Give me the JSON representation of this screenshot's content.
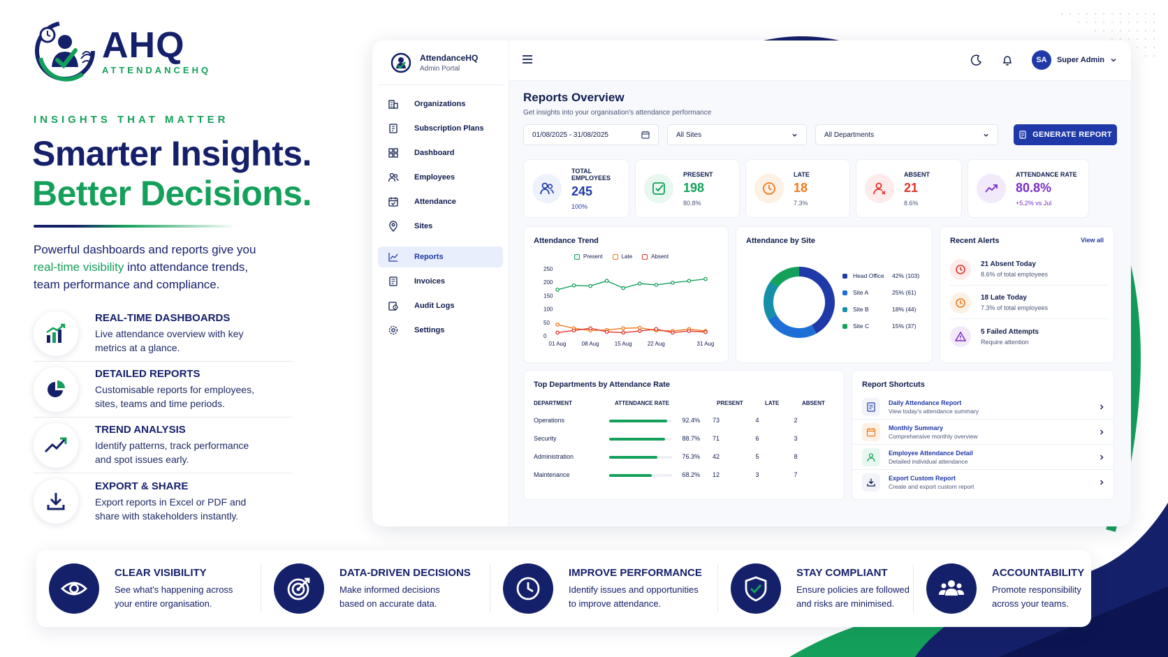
{
  "brand": {
    "name": "AHQ",
    "subtitle": "ATTENDANCEHQ"
  },
  "hero": {
    "eyebrow": "INSIGHTS THAT MATTER",
    "headline_1": "Smarter Insights.",
    "headline_2": "Better Decisions.",
    "intro_1": "Powerful dashboards and reports give you",
    "intro_hl": "real-time visibility",
    "intro_2": " into attendance trends,",
    "intro_3": "team performance and compliance."
  },
  "features": [
    {
      "title": "REAL-TIME DASHBOARDS",
      "desc_1": "Live attendance overview with key",
      "desc_2": "metrics at a glance.",
      "icon": "bar-chart-icon"
    },
    {
      "title": "DETAILED REPORTS",
      "desc_1": "Customisable reports for employees,",
      "desc_2": "sites, teams and time periods.",
      "icon": "pie-chart-icon"
    },
    {
      "title": "TREND ANALYSIS",
      "desc_1": "Identify patterns, track performance",
      "desc_2": "and spot issues early.",
      "icon": "trend-up-icon"
    },
    {
      "title": "EXPORT & SHARE",
      "desc_1": "Export reports in Excel or PDF and",
      "desc_2": "share with stakeholders instantly.",
      "icon": "download-icon"
    }
  ],
  "app": {
    "sidebar": {
      "title": "AttendanceHQ",
      "subtitle": "Admin Portal",
      "items": [
        {
          "label": "Organizations",
          "icon": "building-icon"
        },
        {
          "label": "Subscription Plans",
          "icon": "plans-icon"
        },
        {
          "label": "Dashboard",
          "icon": "grid-icon"
        },
        {
          "label": "Employees",
          "icon": "users-icon"
        },
        {
          "label": "Attendance",
          "icon": "calendar-icon"
        },
        {
          "label": "Sites",
          "icon": "pin-icon"
        },
        {
          "label": "Reports",
          "icon": "chart-icon"
        },
        {
          "label": "Invoices",
          "icon": "invoice-icon"
        },
        {
          "label": "Audit Logs",
          "icon": "audit-icon"
        },
        {
          "label": "Settings",
          "icon": "gear-icon"
        }
      ]
    },
    "topbar": {
      "avatar": "SA",
      "user": "Super Admin"
    },
    "page": {
      "title": "Reports Overview",
      "subtitle": "Get insights into your organisation's attendance performance"
    },
    "filters": {
      "date_range": "01/08/2025 - 31/08/2025",
      "sites": "All Sites",
      "departments": "All Departments",
      "generate": "GENERATE REPORT"
    },
    "stats": [
      {
        "label": "TOTAL EMPLOYEES",
        "value": "245",
        "note": "100%",
        "color": "#1f3aa8"
      },
      {
        "label": "PRESENT",
        "value": "198",
        "note": "80.8%",
        "color": "#14a05a"
      },
      {
        "label": "LATE",
        "value": "18",
        "note": "7.3%",
        "color": "#f07a1a"
      },
      {
        "label": "ABSENT",
        "value": "21",
        "note": "8.6%",
        "color": "#e0342a"
      },
      {
        "label": "ATTENDANCE RATE",
        "value": "80.8%",
        "note": "+5.2% vs Jul",
        "color": "#7a2ec7"
      }
    ],
    "trend": {
      "title": "Attendance Trend",
      "legend_present": "Present",
      "legend_late": "Late",
      "legend_absent": "Absent",
      "y_ticks": [
        "250",
        "200",
        "150",
        "100",
        "50",
        "0"
      ],
      "x_ticks": [
        "01 Aug",
        "08 Aug",
        "15 Aug",
        "22 Aug",
        "31 Aug"
      ]
    },
    "by_site": {
      "title": "Attendance by Site",
      "rows": [
        {
          "name": "Head Office",
          "value": "42% (103)",
          "color": "#1f3aa8"
        },
        {
          "name": "Site A",
          "value": "25% (61)",
          "color": "#1d6fd6"
        },
        {
          "name": "Site B",
          "value": "18% (44)",
          "color": "#1590a8"
        },
        {
          "name": "Site C",
          "value": "15% (37)",
          "color": "#14a05a"
        }
      ]
    },
    "alerts": {
      "title": "Recent Alerts",
      "view_all": "View all",
      "items": [
        {
          "title": "21 Absent Today",
          "sub": "8.6% of total employees"
        },
        {
          "title": "18 Late Today",
          "sub": "7.3% of total employees"
        },
        {
          "title": "5 Failed Attempts",
          "sub": "Require attention"
        }
      ]
    },
    "departments": {
      "title": "Top Departments by Attendance Rate",
      "headers": [
        "DEPARTMENT",
        "ATTENDANCE RATE",
        "PRESENT",
        "LATE",
        "ABSENT"
      ],
      "rows": [
        {
          "name": "Operations",
          "rate": "92.4%",
          "rate_value": 0.924,
          "present": "73",
          "late": "4",
          "absent": "2"
        },
        {
          "name": "Security",
          "rate": "88.7%",
          "rate_value": 0.887,
          "present": "71",
          "late": "6",
          "absent": "3"
        },
        {
          "name": "Administration",
          "rate": "76.3%",
          "rate_value": 0.763,
          "present": "42",
          "late": "5",
          "absent": "8"
        },
        {
          "name": "Maintenance",
          "rate": "68.2%",
          "rate_value": 0.682,
          "present": "12",
          "late": "3",
          "absent": "7"
        }
      ]
    },
    "shortcuts": {
      "title": "Report Shortcuts",
      "items": [
        {
          "title": "Daily Attendance Report",
          "sub": "View today's attendance summary"
        },
        {
          "title": "Monthly Summary",
          "sub": "Comprehensive monthly overview"
        },
        {
          "title": "Employee Attendance Detail",
          "sub": "Detailed individual attendance"
        },
        {
          "title": "Export Custom Report",
          "sub": "Create and export custom report"
        }
      ]
    }
  },
  "chart_data": [
    {
      "type": "line",
      "title": "Attendance Trend",
      "x": [
        "01 Aug",
        "04 Aug",
        "08 Aug",
        "11 Aug",
        "15 Aug",
        "18 Aug",
        "22 Aug",
        "25 Aug",
        "28 Aug",
        "31 Aug"
      ],
      "x_ticks": [
        "01 Aug",
        "08 Aug",
        "15 Aug",
        "22 Aug",
        "31 Aug"
      ],
      "ylim": [
        0,
        250
      ],
      "series": [
        {
          "name": "Present",
          "color": "#14a05a",
          "values": [
            172,
            188,
            186,
            205,
            178,
            195,
            190,
            198,
            205,
            212
          ]
        },
        {
          "name": "Late",
          "color": "#f07a1a",
          "values": [
            42,
            28,
            20,
            22,
            28,
            30,
            20,
            18,
            25,
            18
          ]
        },
        {
          "name": "Absent",
          "color": "#e0342a",
          "values": [
            12,
            20,
            28,
            15,
            12,
            18,
            25,
            12,
            18,
            14
          ]
        }
      ]
    },
    {
      "type": "pie",
      "title": "Attendance by Site",
      "categories": [
        "Head Office",
        "Site A",
        "Site B",
        "Site C"
      ],
      "values": [
        42,
        25,
        18,
        15
      ]
    }
  ],
  "benefits": [
    {
      "title": "CLEAR VISIBILITY",
      "desc_1": "See what's happening across",
      "desc_2": "your entire organisation.",
      "icon": "eye-icon"
    },
    {
      "title": "DATA-DRIVEN DECISIONS",
      "desc_1": "Make informed decisions",
      "desc_2": "based on accurate data.",
      "icon": "target-icon"
    },
    {
      "title": "IMPROVE PERFORMANCE",
      "desc_1": "Identify issues and opportunities",
      "desc_2": "to improve attendance.",
      "icon": "clock-icon"
    },
    {
      "title": "STAY COMPLIANT",
      "desc_1": "Ensure policies are followed",
      "desc_2": "and risks are minimised.",
      "icon": "shield-check-icon"
    },
    {
      "title": "ACCOUNTABILITY",
      "desc_1": "Promote responsibility",
      "desc_2": "across your teams.",
      "icon": "team-icon"
    }
  ]
}
